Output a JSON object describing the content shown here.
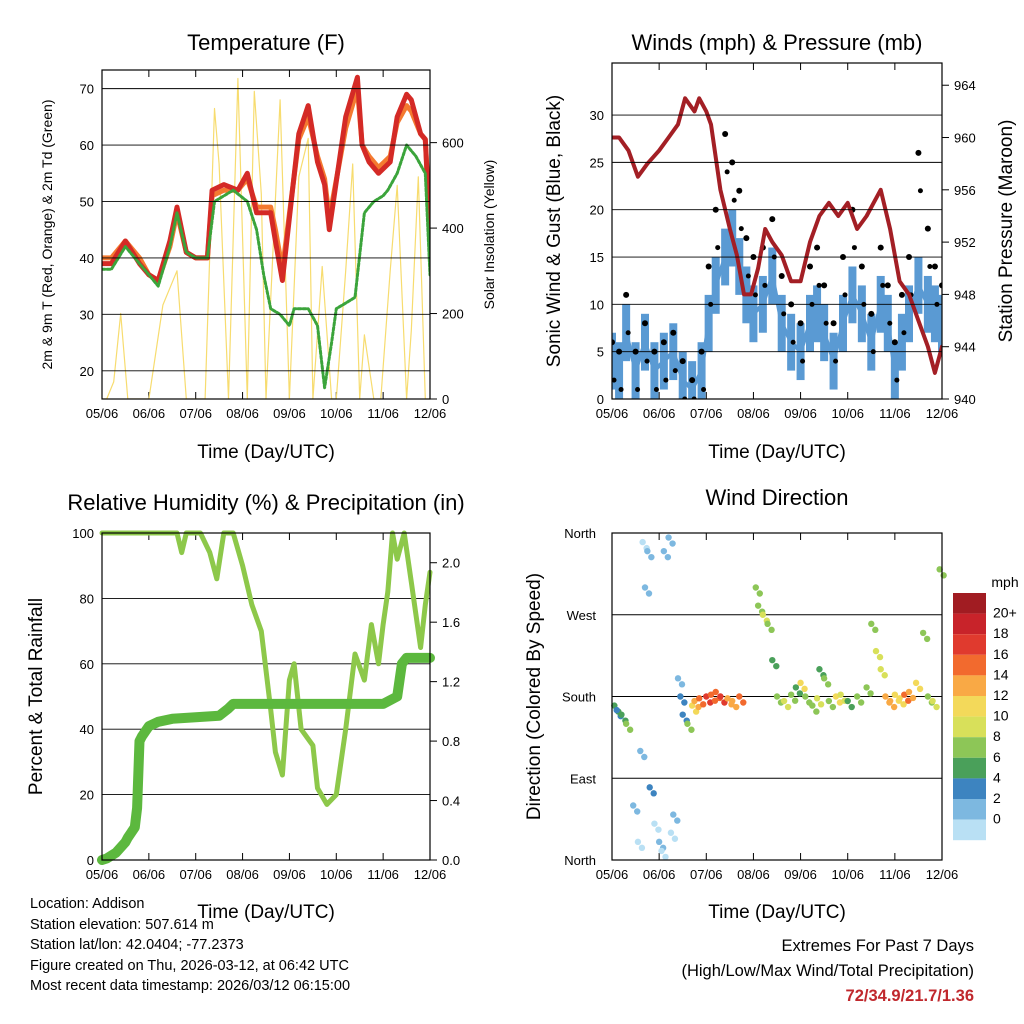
{
  "colors": {
    "t2m": "#d42a26",
    "t9m": "#f47a30",
    "td": "#3ba43b",
    "solar": "#f7dc6f",
    "wind": "#5a9ad3",
    "gust": "#000000",
    "pressure": "#a31f25",
    "rh": "#8dc84a",
    "precip": "#5cb83e"
  },
  "chart_data": [
    {
      "id": "temperature",
      "type": "line",
      "title": "Temperature (F)",
      "xlabel": "Time (Day/UTC)",
      "ylabel": "2m & 9m T (Red, Orange) & 2m Td (Green)",
      "y2label": "Solar Insolation (Yellow)",
      "x_ticks": [
        "05/06",
        "06/06",
        "07/06",
        "08/06",
        "09/06",
        "10/06",
        "11/06",
        "12/06"
      ],
      "xlim": [
        0,
        7
      ],
      "ylim": [
        15,
        73.3
      ],
      "y_ticks": [
        "20",
        "30",
        "40",
        "50",
        "60",
        "70"
      ],
      "y2lim": [
        0,
        770
      ],
      "y2_ticks": [
        "0",
        "200",
        "400",
        "600"
      ],
      "grid": "horizontal",
      "series": [
        {
          "name": "2m T",
          "x": [
            0,
            0.2,
            0.5,
            0.8,
            1.0,
            1.2,
            1.45,
            1.6,
            1.8,
            2.0,
            2.25,
            2.35,
            2.6,
            2.9,
            3.1,
            3.3,
            3.6,
            3.7,
            3.85,
            4.2,
            4.4,
            4.6,
            4.75,
            4.85,
            5.2,
            5.45,
            5.55,
            5.7,
            5.9,
            6.15,
            6.3,
            6.5,
            6.6,
            6.8,
            6.9,
            7.0
          ],
          "values": [
            39,
            39,
            43,
            39,
            37,
            36,
            43,
            49,
            41,
            40,
            40,
            52,
            53,
            52,
            55,
            48,
            48,
            43,
            36,
            62,
            67,
            57,
            53,
            45,
            65,
            72,
            60,
            57,
            55,
            57,
            65,
            69,
            68,
            62,
            61,
            44
          ]
        },
        {
          "name": "9m T",
          "x": [
            0,
            0.2,
            0.5,
            0.8,
            1.0,
            1.2,
            1.45,
            1.6,
            1.8,
            2.0,
            2.25,
            2.35,
            2.6,
            2.9,
            3.1,
            3.3,
            3.6,
            3.7,
            3.85,
            4.2,
            4.4,
            4.6,
            4.75,
            4.85,
            5.2,
            5.45,
            5.55,
            5.7,
            5.9,
            6.15,
            6.3,
            6.5,
            6.6,
            6.8,
            6.9,
            7.0
          ],
          "values": [
            40,
            40,
            43,
            40,
            37,
            36,
            42,
            48,
            41,
            40,
            40,
            51,
            52,
            52,
            54,
            49,
            49,
            45,
            38,
            61,
            65,
            58,
            54,
            47,
            63,
            70,
            60,
            58,
            56,
            58,
            64,
            67,
            66,
            62,
            61,
            46
          ]
        },
        {
          "name": "2m Td",
          "x": [
            0,
            0.2,
            0.5,
            0.8,
            1.0,
            1.2,
            1.45,
            1.6,
            1.8,
            2.0,
            2.25,
            2.4,
            2.8,
            3.1,
            3.3,
            3.45,
            3.6,
            3.8,
            4.0,
            4.1,
            4.4,
            4.6,
            4.75,
            4.9,
            5.0,
            5.2,
            5.4,
            5.6,
            5.8,
            6.0,
            6.1,
            6.3,
            6.5,
            6.7,
            6.9,
            7.0
          ],
          "values": [
            38,
            38,
            42,
            39,
            37,
            35,
            42,
            48,
            41,
            40,
            40,
            50,
            52,
            50,
            45,
            37,
            31,
            30,
            28,
            31,
            31,
            28,
            17,
            25,
            31,
            32,
            33,
            48,
            50,
            51,
            52,
            55,
            60,
            58,
            55,
            37
          ]
        },
        {
          "name": "Solar",
          "axis": "y2",
          "x": [
            0,
            0.1,
            0.25,
            0.4,
            0.55,
            1.0,
            1.3,
            1.6,
            1.8,
            2.0,
            2.1,
            2.2,
            2.4,
            2.5,
            2.7,
            2.9,
            3.1,
            3.25,
            3.4,
            3.5,
            3.8,
            4.0,
            4.2,
            4.4,
            4.5,
            4.7,
            4.9,
            5.0,
            5.2,
            5.35,
            5.5,
            5.6,
            5.8,
            5.95,
            6.15,
            6.3,
            6.5,
            6.6,
            6.75,
            6.9,
            7.0
          ],
          "values": [
            0,
            0,
            40,
            200,
            0,
            0,
            220,
            300,
            0,
            0,
            0,
            0,
            680,
            550,
            0,
            750,
            0,
            720,
            480,
            0,
            700,
            0,
            520,
            610,
            0,
            310,
            0,
            0,
            300,
            550,
            0,
            150,
            0,
            0,
            300,
            500,
            0,
            160,
            520,
            0,
            0
          ]
        }
      ]
    },
    {
      "id": "winds",
      "type": "scatter",
      "title": "Winds (mph) & Pressure (mb)",
      "xlabel": "Time (Day/UTC)",
      "ylabel": "Sonic Wind & Gust (Blue, Black)",
      "y2label": "Station Pressure (Maroon)",
      "x_ticks": [
        "05/06",
        "06/06",
        "07/06",
        "08/06",
        "09/06",
        "10/06",
        "11/06",
        "12/06"
      ],
      "xlim": [
        0,
        7
      ],
      "ylim": [
        0,
        35.5
      ],
      "y_ticks": [
        "0",
        "5",
        "10",
        "15",
        "20",
        "25",
        "30"
      ],
      "y2lim": [
        940,
        965.7
      ],
      "y2_ticks": [
        "940",
        "944",
        "948",
        "952",
        "956",
        "960",
        "964"
      ],
      "grid": "horizontal",
      "series": [
        {
          "name": "Sonic Wind",
          "x": [
            0,
            0.15,
            0.3,
            0.5,
            0.7,
            0.9,
            1.1,
            1.3,
            1.5,
            1.7,
            1.9,
            2.05,
            2.2,
            2.4,
            2.55,
            2.7,
            2.85,
            3.0,
            3.2,
            3.4,
            3.6,
            3.8,
            4.0,
            4.2,
            4.35,
            4.5,
            4.7,
            4.9,
            5.1,
            5.3,
            5.5,
            5.7,
            5.85,
            6.0,
            6.15,
            6.3,
            6.5,
            6.7,
            6.85,
            7.0
          ],
          "values": [
            4,
            3,
            7,
            3,
            6,
            3,
            4,
            5,
            2,
            1,
            3,
            8,
            12,
            15,
            17,
            14,
            11,
            9,
            10,
            13,
            8,
            6,
            5,
            8,
            9,
            7,
            4,
            8,
            11,
            9,
            6,
            10,
            8,
            3,
            6,
            9,
            12,
            10,
            9,
            8
          ]
        },
        {
          "name": "Gust",
          "x": [
            0,
            0.15,
            0.3,
            0.5,
            0.7,
            0.9,
            1.1,
            1.3,
            1.5,
            1.7,
            1.9,
            2.05,
            2.2,
            2.4,
            2.55,
            2.7,
            2.85,
            3.0,
            3.2,
            3.4,
            3.6,
            3.8,
            4.0,
            4.2,
            4.35,
            4.5,
            4.7,
            4.9,
            5.1,
            5.3,
            5.5,
            5.7,
            5.85,
            6.0,
            6.15,
            6.3,
            6.5,
            6.7,
            6.85,
            7.0
          ],
          "values": [
            6,
            5,
            11,
            5,
            8,
            5,
            6,
            7,
            4,
            2,
            5,
            14,
            20,
            28,
            25,
            22,
            17,
            15,
            16,
            19,
            13,
            10,
            8,
            14,
            16,
            12,
            8,
            15,
            20,
            14,
            9,
            16,
            12,
            6,
            11,
            15,
            26,
            18,
            14,
            12
          ]
        },
        {
          "name": "Pressure",
          "axis": "y2",
          "x": [
            0,
            0.15,
            0.35,
            0.45,
            0.55,
            0.75,
            1.0,
            1.2,
            1.4,
            1.55,
            1.75,
            1.85,
            2.0,
            2.1,
            2.3,
            2.5,
            2.65,
            2.8,
            2.95,
            3.1,
            3.25,
            3.4,
            3.6,
            3.8,
            4.0,
            4.2,
            4.4,
            4.6,
            4.8,
            5.0,
            5.2,
            5.4,
            5.55,
            5.7,
            5.9,
            6.1,
            6.3,
            6.5,
            6.7,
            6.85,
            7.0
          ],
          "values": [
            960,
            960,
            959,
            958,
            957,
            958,
            959,
            960,
            961,
            963,
            962,
            963,
            962,
            961,
            956,
            953,
            951,
            948,
            948,
            950,
            953,
            952,
            951,
            949,
            949,
            952,
            954,
            955,
            954,
            955,
            953,
            954,
            955,
            956,
            953,
            949,
            948,
            946,
            944,
            942,
            944
          ]
        }
      ]
    },
    {
      "id": "humidity",
      "type": "line",
      "title": "Relative Humidity (%) & Precipitation (in)",
      "xlabel": "Time (Day/UTC)",
      "ylabel": "Percent & Total Rainfall",
      "x_ticks": [
        "05/06",
        "06/06",
        "07/06",
        "08/06",
        "09/06",
        "10/06",
        "11/06",
        "12/06"
      ],
      "xlim": [
        0,
        7
      ],
      "ylim": [
        0,
        100
      ],
      "y_ticks": [
        "0",
        "20",
        "40",
        "60",
        "80",
        "100"
      ],
      "y2lim": [
        0,
        2.2
      ],
      "y2_ticks": [
        "0.0",
        "0.4",
        "0.8",
        "1.2",
        "1.6",
        "2.0"
      ],
      "grid": "horizontal",
      "series": [
        {
          "name": "Relative Humidity",
          "x": [
            0,
            1.6,
            1.7,
            1.8,
            2.1,
            2.3,
            2.45,
            2.6,
            2.8,
            3.0,
            3.2,
            3.4,
            3.6,
            3.7,
            3.85,
            4.0,
            4.1,
            4.25,
            4.5,
            4.6,
            4.8,
            5.0,
            5.2,
            5.4,
            5.6,
            5.75,
            5.9,
            6.0,
            6.1,
            6.2,
            6.3,
            6.45,
            6.6,
            6.8,
            6.9,
            7.0
          ],
          "values": [
            100,
            100,
            94,
            100,
            100,
            94,
            86,
            100,
            100,
            90,
            78,
            70,
            46,
            33,
            26,
            55,
            60,
            40,
            35,
            22,
            17,
            20,
            40,
            63,
            55,
            72,
            60,
            72,
            82,
            100,
            92,
            100,
            85,
            65,
            78,
            88
          ]
        },
        {
          "name": "Total Precipitation",
          "axis": "y2",
          "x": [
            0,
            0.1,
            0.3,
            0.5,
            0.55,
            0.7,
            0.75,
            0.8,
            0.85,
            1.0,
            1.2,
            1.5,
            2.0,
            2.5,
            2.7,
            2.8,
            6.0,
            6.3,
            6.4,
            6.5,
            7.0
          ],
          "values": [
            0,
            0.01,
            0.05,
            0.12,
            0.15,
            0.22,
            0.35,
            0.8,
            0.83,
            0.9,
            0.93,
            0.95,
            0.96,
            0.97,
            1.02,
            1.05,
            1.05,
            1.1,
            1.32,
            1.36,
            1.36
          ]
        }
      ]
    },
    {
      "id": "direction",
      "type": "scatter",
      "title": "Wind Direction",
      "xlabel": "Time (Day/UTC)",
      "ylabel": "Direction (Colored By Speed)",
      "x_ticks": [
        "05/06",
        "06/06",
        "07/06",
        "08/06",
        "09/06",
        "10/06",
        "11/06",
        "12/06"
      ],
      "xlim": [
        0,
        7
      ],
      "ylim": [
        0,
        360
      ],
      "y_ticks": [
        "North",
        "East",
        "South",
        "West",
        "North"
      ],
      "grid": "horizontal",
      "legend": {
        "title": "mph",
        "labels": [
          "20+",
          "18",
          "16",
          "14",
          "12",
          "10",
          "8",
          "6",
          "4",
          "2",
          "0"
        ],
        "colors": [
          "#a11c22",
          "#c8232a",
          "#e03a2e",
          "#f26a2e",
          "#f9a945",
          "#f3d95a",
          "#d8e05a",
          "#8dc657",
          "#4aa05a",
          "#3d84c0",
          "#7db8e0",
          "#b9e0f4"
        ]
      },
      "series": [
        {
          "name": "Direction",
          "x": [
            0.05,
            0.1,
            0.2,
            0.3,
            0.45,
            0.55,
            0.6,
            0.65,
            0.7,
            0.75,
            0.8,
            0.9,
            1.0,
            1.05,
            1.1,
            1.2,
            1.25,
            1.3,
            1.4,
            1.45,
            1.5,
            1.6,
            1.7,
            1.75,
            1.85,
            2.0,
            2.1,
            2.2,
            2.3,
            2.45,
            2.55,
            2.7,
            3.05,
            3.1,
            3.2,
            3.3,
            3.4,
            3.5,
            3.65,
            3.8,
            3.9,
            4.0,
            4.1,
            4.25,
            4.35,
            4.4,
            4.5,
            4.6,
            4.75,
            4.85,
            5.0,
            5.2,
            5.4,
            5.5,
            5.6,
            5.7,
            5.8,
            5.9,
            6.0,
            6.1,
            6.2,
            6.3,
            6.45,
            6.6,
            6.7,
            6.8,
            6.95
          ],
          "values": [
            170,
            165,
            160,
            150,
            60,
            20,
            120,
            350,
            300,
            340,
            80,
            40,
            20,
            10,
            340,
            355,
            30,
            50,
            200,
            180,
            160,
            150,
            170,
            175,
            178,
            180,
            182,
            185,
            180,
            178,
            175,
            180,
            300,
            280,
            270,
            260,
            220,
            180,
            175,
            182,
            190,
            195,
            180,
            170,
            178,
            210,
            200,
            175,
            180,
            182,
            175,
            180,
            190,
            260,
            230,
            210,
            180,
            175,
            182,
            178,
            182,
            185,
            195,
            250,
            180,
            175,
            320
          ],
          "speeds": [
            6,
            5,
            7,
            8,
            2,
            1,
            3,
            1,
            2,
            3,
            4,
            1,
            2,
            1,
            3,
            2,
            1,
            2,
            3,
            4,
            5,
            8,
            12,
            14,
            16,
            18,
            17,
            16,
            18,
            15,
            14,
            16,
            8,
            9,
            10,
            8,
            6,
            9,
            10,
            8,
            7,
            12,
            8,
            9,
            10,
            7,
            9,
            8,
            12,
            11,
            7,
            8,
            9,
            9,
            10,
            11,
            15,
            14,
            12,
            13,
            16,
            14,
            12,
            8,
            9,
            10,
            8
          ]
        }
      ]
    }
  ],
  "info": {
    "location": "Location: Addison",
    "elevation": "Station elevation: 507.614 m",
    "latlon": "Station lat/lon: 42.0404; -77.2373",
    "created": "Figure created on Thu, 2026-03-12, at 06:42 UTC",
    "recent": "Most recent data timestamp: 2026/03/12 06:15:00"
  },
  "extremes": {
    "title": "Extremes For Past 7 Days",
    "subtitle": "(High/Low/Max Wind/Total Precipitation)",
    "values": "72/34.9/21.7/1.36"
  }
}
